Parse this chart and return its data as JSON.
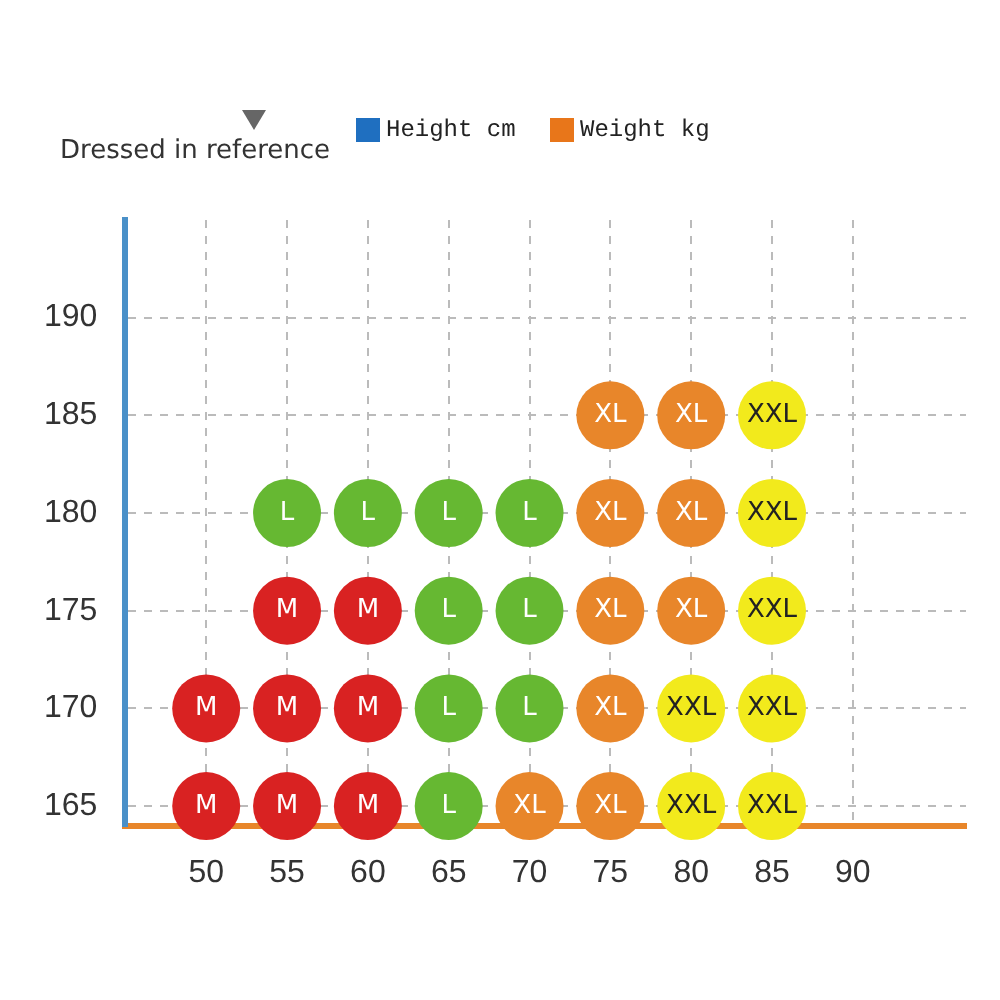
{
  "chart_data": {
    "type": "scatter",
    "xlabel": "Weight kg",
    "ylabel": "Height cm",
    "annotations": [
      "Dressed in reference"
    ],
    "xlim": [
      45,
      97
    ],
    "xticks": [
      50,
      55,
      60,
      65,
      70,
      75,
      80,
      85,
      90
    ],
    "ylim": [
      164,
      195
    ],
    "yticks": [
      165,
      170,
      175,
      180,
      185,
      190
    ],
    "grid": true,
    "marker": "circle",
    "legend": false,
    "series": [
      {
        "color": "#d92222",
        "x": [
          50,
          55,
          60,
          50,
          55,
          60,
          55,
          60
        ],
        "values": [
          165,
          165,
          165,
          170,
          170,
          170,
          175,
          175
        ],
        "value_labels": [
          "M",
          "M",
          "M",
          "M",
          "M",
          "M",
          "M",
          "M"
        ]
      },
      {
        "color": "#66b832",
        "x": [
          65,
          65,
          70,
          65,
          70,
          55,
          60,
          65,
          70
        ],
        "values": [
          165,
          170,
          170,
          175,
          175,
          180,
          180,
          180,
          180
        ],
        "value_labels": [
          "L",
          "L",
          "L",
          "L",
          "L",
          "L",
          "L",
          "L",
          "L"
        ]
      },
      {
        "color": "#e8862a",
        "x": [
          70,
          75,
          75,
          75,
          80,
          75,
          80,
          75,
          80
        ],
        "values": [
          165,
          165,
          170,
          175,
          175,
          180,
          180,
          185,
          185
        ],
        "value_labels": [
          "XL",
          "XL",
          "XL",
          "XL",
          "XL",
          "XL",
          "XL",
          "XL",
          "XL"
        ]
      },
      {
        "color": "#f2ea1c",
        "x": [
          80,
          85,
          80,
          85,
          85,
          85,
          85
        ],
        "values": [
          165,
          165,
          170,
          170,
          175,
          180,
          185
        ],
        "value_labels": [
          "XXL",
          "XXL",
          "XXL",
          "XXL",
          "XXL",
          "XXL",
          "XXL"
        ]
      }
    ]
  }
}
